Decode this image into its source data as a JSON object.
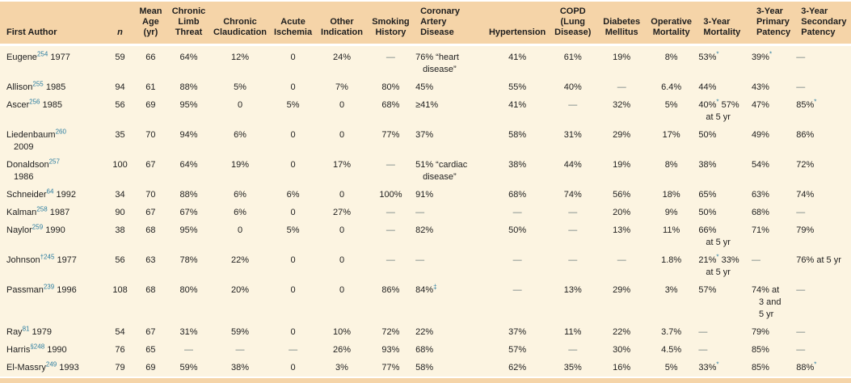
{
  "table": {
    "columns": [
      "First Author",
      "n",
      "Mean\nAge\n(yr)",
      "Chronic\nLimb\nThreat",
      "Chronic\nClaudication",
      "Acute\nIschemia",
      "Other\nIndication",
      "Smoking\nHistory",
      "Coronary\nArtery\nDisease",
      "Hypertension",
      "COPD\n(Lung\nDisease)",
      "Diabetes\nMellitus",
      "Operative\nMortality",
      "3-Year\nMortality",
      "3-Year\nPrimary\nPatency",
      "3-Year\nSecondary\nPatency"
    ],
    "rows": [
      [
        "Eugene^{254} 1977",
        "59",
        "66",
        "64%",
        "12%",
        "0",
        "24%",
        "—",
        "76% “heart\ndisease”",
        "41%",
        "61%",
        "19%",
        "8%",
        "53%^{*}",
        "39%^{*}",
        "—"
      ],
      [
        "Allison^{255} 1985",
        "94",
        "61",
        "88%",
        "5%",
        "0",
        "7%",
        "80%",
        "45%",
        "55%",
        "40%",
        "—",
        "6.4%",
        "44%",
        "43%",
        "—"
      ],
      [
        "Ascer^{256} 1985",
        "56",
        "69",
        "95%",
        "0",
        "5%",
        "0",
        "68%",
        "≥41%",
        "41%",
        "—",
        "32%",
        "5%",
        "40%^{*} 57%\nat 5 yr",
        "47%",
        "85%^{*}"
      ],
      [
        "Liedenbaum^{260}\n2009",
        "35",
        "70",
        "94%",
        "6%",
        "0",
        "0",
        "77%",
        "37%",
        "58%",
        "31%",
        "29%",
        "17%",
        "50%",
        "49%",
        "86%"
      ],
      [
        "Donaldson^{257}\n1986",
        "100",
        "67",
        "64%",
        "19%",
        "0",
        "17%",
        "—",
        "51% “cardiac\ndisease”",
        "38%",
        "44%",
        "19%",
        "8%",
        "38%",
        "54%",
        "72%"
      ],
      [
        "Schneider^{64} 1992",
        "34",
        "70",
        "88%",
        "6%",
        "6%",
        "0",
        "100%",
        "91%",
        "68%",
        "74%",
        "56%",
        "18%",
        "65%",
        "63%",
        "74%"
      ],
      [
        "Kalman^{258} 1987",
        "90",
        "67",
        "67%",
        "6%",
        "0",
        "27%",
        "—",
        "—",
        "—",
        "—",
        "20%",
        "9%",
        "50%",
        "68%",
        "—"
      ],
      [
        "Naylor^{259} 1990",
        "38",
        "68",
        "95%",
        "0",
        "5%",
        "0",
        "—",
        "82%",
        "50%",
        "—",
        "13%",
        "11%",
        "66%\nat 5 yr",
        "71%",
        "79%"
      ],
      [
        "Johnson^{†245} 1977",
        "56",
        "63",
        "78%",
        "22%",
        "0",
        "0",
        "—",
        "—",
        "—",
        "—",
        "—",
        "1.8%",
        "21%^{*} 33%\nat 5 yr",
        "—",
        "76% at 5 yr"
      ],
      [
        "Passman^{239} 1996",
        "108",
        "68",
        "80%",
        "20%",
        "0",
        "0",
        "86%",
        "84%^{‡}",
        "—",
        "13%",
        "29%",
        "3%",
        "57%",
        "74% at\n3 and\n5 yr",
        "—"
      ],
      [
        "Ray^{81} 1979",
        "54",
        "67",
        "31%",
        "59%",
        "0",
        "10%",
        "72%",
        "22%",
        "37%",
        "11%",
        "22%",
        "3.7%",
        "—",
        "79%",
        "—"
      ],
      [
        "Harris^{§248} 1990",
        "76",
        "65",
        "—",
        "—",
        "—",
        "26%",
        "93%",
        "68%",
        "57%",
        "—",
        "30%",
        "4.5%",
        "—",
        "85%",
        "—"
      ],
      [
        "El-Massry^{249} 1993",
        "79",
        "69",
        "59%",
        "38%",
        "0",
        "3%",
        "77%",
        "58%",
        "62%",
        "35%",
        "16%",
        "5%",
        "33%^{*}",
        "85%",
        "88%^{*}"
      ]
    ],
    "colors": {
      "header_background": "#f5d4a8",
      "body_background": "#fcf4e1",
      "reference_accent": "#2b7da0",
      "text": "#1e1e1e"
    }
  }
}
